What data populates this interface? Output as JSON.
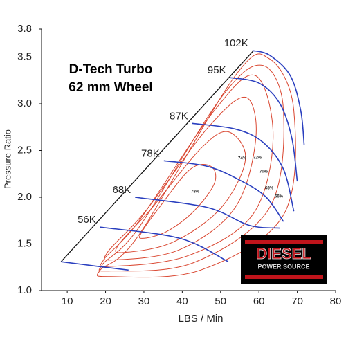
{
  "chart_data": {
    "type": "line",
    "title": "D-Tech Turbo",
    "subtitle": "62 mm Wheel",
    "x_label": "LBS / Min",
    "y_label": "Pressure Ratio",
    "xlim": [
      3.3,
      80
    ],
    "ylim": [
      1.0,
      3.8
    ],
    "xticks": [
      10,
      20,
      30,
      40,
      50,
      60,
      70,
      80
    ],
    "yticks": [
      {
        "value": 1.0,
        "label": "1.0"
      },
      1.5,
      {
        "value": 2.0,
        "label": "2.0"
      },
      2.5,
      {
        "value": 3.0,
        "label": "3.0"
      },
      3.5,
      3.8
    ],
    "surge_line": {
      "color": "#111111",
      "x": [
        8.4,
        58.6
      ],
      "y": [
        1.31,
        3.57
      ]
    },
    "speed_lines": [
      {
        "color": "#2a3fbf",
        "x": [
          8.4,
          18.0,
          26.0
        ],
        "y": [
          1.31,
          1.26,
          1.22
        ]
      },
      {
        "name": "56K",
        "color": "#2a3fbf",
        "x": [
          18.6,
          39.4,
          52.0
        ],
        "y": [
          1.68,
          1.56,
          1.31
        ]
      },
      {
        "name": "68K",
        "color": "#2a3fbf",
        "x": [
          27.7,
          46.6,
          57.4,
          65.5
        ],
        "y": [
          2.0,
          1.89,
          1.7,
          1.67
        ]
      },
      {
        "name": "78K",
        "color": "#2a3fbf",
        "x": [
          35.2,
          46.6,
          55.6,
          61.9,
          66.4
        ],
        "y": [
          2.39,
          2.33,
          2.17,
          2.0,
          1.74
        ]
      },
      {
        "name": "87K",
        "color": "#2a3fbf",
        "x": [
          42.6,
          53.8,
          61.0,
          66.4,
          69.1
        ],
        "y": [
          2.79,
          2.73,
          2.59,
          2.3,
          1.85
        ]
      },
      {
        "name": "95K",
        "color": "#2a3fbf",
        "x": [
          52.5,
          60.1,
          65.5,
          68.6,
          70.0
        ],
        "y": [
          3.28,
          3.22,
          3.0,
          2.63,
          2.17
        ]
      },
      {
        "name": "102K",
        "color": "#2a3fbf",
        "x": [
          58.3,
          62.8,
          68.2,
          70.9,
          71.8
        ],
        "y": [
          3.57,
          3.52,
          3.3,
          2.93,
          2.56
        ]
      }
    ],
    "efficiency_islands": [
      {
        "name": "78%",
        "color": "#d9452f",
        "x": [
          29.5,
          34.0,
          42.1,
          47.5,
          48.4,
          43.0,
          35.8,
          29.5
        ],
        "y": [
          1.63,
          1.89,
          2.3,
          2.33,
          2.15,
          1.85,
          1.63,
          1.56
        ]
      },
      {
        "name": "74%",
        "color": "#d9452f",
        "x": [
          23.2,
          32.2,
          44.8,
          52.0,
          56.5,
          50.2,
          37.6,
          25.0
        ],
        "y": [
          1.48,
          1.89,
          2.52,
          2.7,
          2.41,
          1.89,
          1.52,
          1.41
        ]
      },
      {
        "name": "72%",
        "color": "#d9452f",
        "x": [
          20.5,
          30.4,
          46.6,
          56.5,
          59.2,
          53.8,
          39.4,
          22.3
        ],
        "y": [
          1.41,
          1.85,
          2.74,
          3.07,
          2.63,
          1.89,
          1.44,
          1.33
        ]
      },
      {
        "name": "70%",
        "color": "#d9452f",
        "x": [
          19.5,
          28.6,
          48.4,
          59.2,
          63.7,
          58.3,
          41.2,
          21.4
        ],
        "y": [
          1.33,
          1.74,
          2.93,
          3.3,
          2.63,
          1.81,
          1.37,
          1.26
        ]
      },
      {
        "name": "68%",
        "color": "#d9452f",
        "x": [
          19.2,
          28.6,
          50.2,
          61.0,
          66.4,
          62.8,
          43.0,
          21.4
        ],
        "y": [
          1.28,
          1.67,
          3.07,
          3.41,
          2.93,
          1.89,
          1.3,
          1.21
        ]
      },
      {
        "name": "66%",
        "color": "#d9452f",
        "x": [
          18.6,
          28.6,
          53.8,
          62.8,
          69.1,
          66.4,
          44.8,
          21.4
        ],
        "y": [
          1.22,
          1.59,
          3.3,
          3.48,
          2.93,
          1.81,
          1.22,
          1.15
        ]
      }
    ],
    "logo": {
      "line1": "DIESEL",
      "line2": "POWER SOURCE"
    }
  }
}
